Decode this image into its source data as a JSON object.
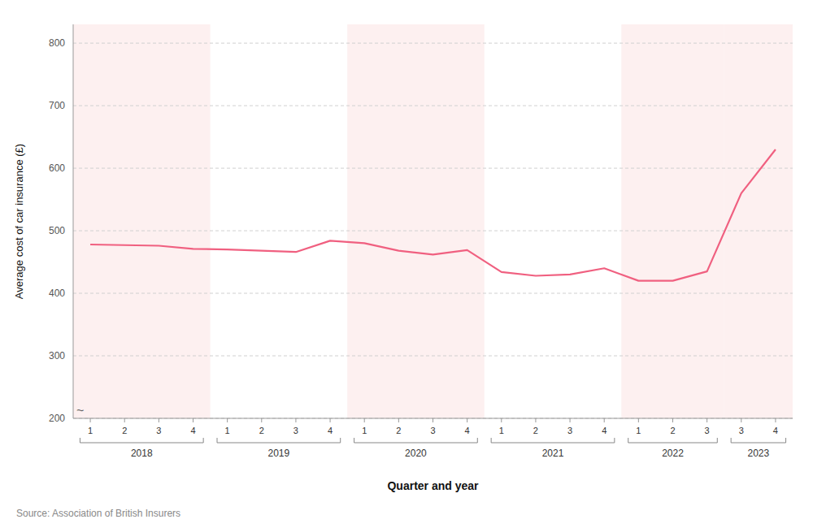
{
  "chart_data": {
    "type": "line",
    "categories": [
      "1",
      "2",
      "3",
      "4",
      "1",
      "2",
      "3",
      "4",
      "1",
      "2",
      "3",
      "4",
      "1",
      "2",
      "3",
      "4",
      "1",
      "2",
      "3",
      "3",
      "4"
    ],
    "values": [
      478,
      477,
      476,
      471,
      470,
      468,
      466,
      484,
      480,
      468,
      462,
      469,
      434,
      428,
      430,
      440,
      420,
      420,
      435,
      560,
      630
    ],
    "color": "#f06080",
    "xlabel": "Quarter and year",
    "ylabel": "Average cost of car insurance  (£)",
    "ylim": [
      200,
      830
    ],
    "yticks": [
      200,
      300,
      400,
      500,
      600,
      700,
      800
    ],
    "grid": true,
    "annotations": [
      {
        "text": "2018",
        "from": 0,
        "to": 3,
        "shaded": true
      },
      {
        "text": "2019",
        "from": 4,
        "to": 7,
        "shaded": false
      },
      {
        "text": "2020",
        "from": 8,
        "to": 11,
        "shaded": true
      },
      {
        "text": "2021",
        "from": 12,
        "to": 15,
        "shaded": false
      },
      {
        "text": "2022",
        "from": 16,
        "to": 18,
        "shaded": true
      },
      {
        "text": "2023",
        "from": 19,
        "to": 20,
        "shaded": true
      },
      {
        "text": "~",
        "y": 200
      },
      {
        "text": "Source: Association of British Insurers"
      }
    ]
  }
}
